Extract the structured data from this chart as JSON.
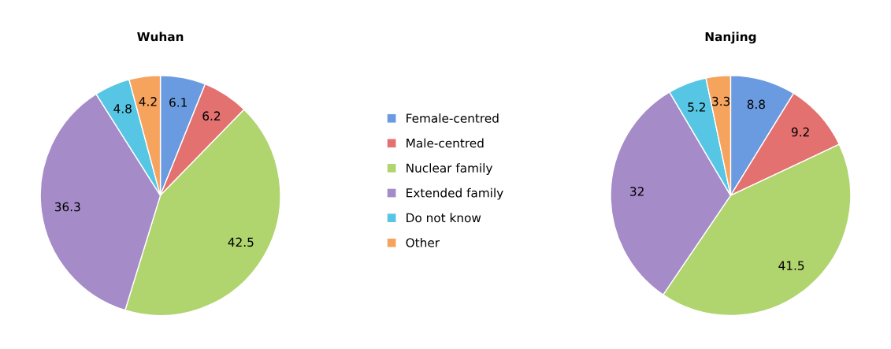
{
  "chart_data": [
    {
      "type": "pie",
      "title": "Wuhan",
      "categories": [
        "Female-centred",
        "Male-centred",
        "Nuclear family",
        "Extended family",
        "Do not know",
        "Other"
      ],
      "values": [
        6.1,
        6.2,
        42.5,
        36.3,
        4.8,
        4.2
      ],
      "colors": [
        "#6a9be0",
        "#e37170",
        "#b0d46e",
        "#a58bc8",
        "#57c6e4",
        "#f6a35e"
      ],
      "data_labels": true,
      "legend": "right"
    },
    {
      "type": "pie",
      "title": "Nanjing",
      "categories": [
        null,
        null,
        null,
        null,
        null,
        null
      ],
      "values": [
        8.8,
        9.2,
        41.5,
        32,
        5.2,
        3.3
      ],
      "colors": [
        "#6a9be0",
        "#e37170",
        "#b0d46e",
        "#a58bc8",
        "#57c6e4",
        "#f6a35e"
      ],
      "data_labels": true
    }
  ]
}
